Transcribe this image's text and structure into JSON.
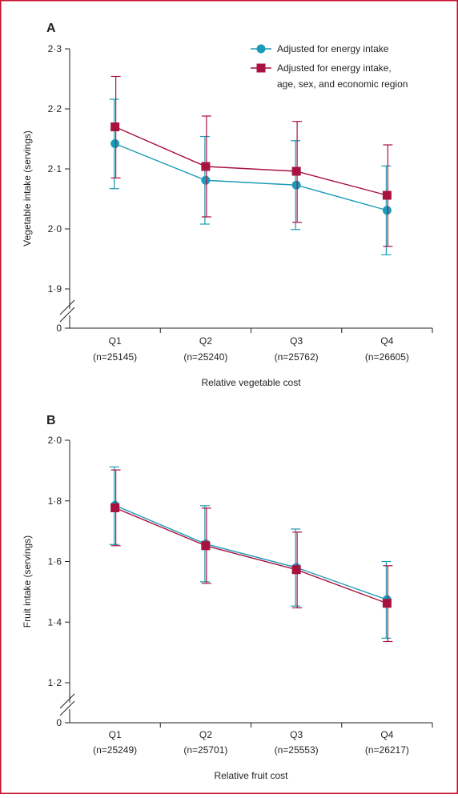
{
  "colors": {
    "frame": "#c8102e",
    "axis": "#231f20",
    "series_1": "#1a9bb8",
    "series_2": "#a8123e"
  },
  "legend": [
    {
      "lines": [
        "Adjusted for energy intake"
      ],
      "marker": "circle"
    },
    {
      "lines": [
        "Adjusted for energy intake,",
        "age, sex, and economic region"
      ],
      "marker": "square"
    }
  ],
  "chart_data": [
    {
      "panel": "A",
      "type": "line",
      "ylabel": "Vegetable intake (servings)",
      "xlabel": "Relative vegetable cost",
      "ylim": [
        1.9,
        2.3
      ],
      "yticks": [
        "2·3",
        "2·2",
        "2·1",
        "2·0",
        "1·9"
      ],
      "ybreak_tick": "0",
      "categories": [
        {
          "label": "Q1",
          "n": "(n=25145)"
        },
        {
          "label": "Q2",
          "n": "(n=25240)"
        },
        {
          "label": "Q3",
          "n": "(n=25762)"
        },
        {
          "label": "Q4",
          "n": "(n=26605)"
        }
      ],
      "series": [
        {
          "name": "Adjusted for energy intake",
          "marker": "circle",
          "values": [
            2.142,
            2.081,
            2.073,
            2.031
          ],
          "lower": [
            2.067,
            2.008,
            1.999,
            1.957
          ],
          "upper": [
            2.216,
            2.154,
            2.147,
            2.105
          ]
        },
        {
          "name": "Adjusted for energy intake, age, sex, and economic region",
          "marker": "square",
          "values": [
            2.17,
            2.104,
            2.096,
            2.056
          ],
          "lower": [
            2.085,
            2.02,
            2.011,
            1.971
          ],
          "upper": [
            2.254,
            2.188,
            2.179,
            2.14
          ]
        }
      ]
    },
    {
      "panel": "B",
      "type": "line",
      "ylabel": "Fruit intake (servings)",
      "xlabel": "Relative fruit cost",
      "ylim": [
        1.2,
        2.0
      ],
      "yticks": [
        "2·0",
        "1·8",
        "1·6",
        "1·4",
        "1·2"
      ],
      "ybreak_tick": "0",
      "categories": [
        {
          "label": "Q1",
          "n": "(n=25249)"
        },
        {
          "label": "Q2",
          "n": "(n=25701)"
        },
        {
          "label": "Q3",
          "n": "(n=25553)"
        },
        {
          "label": "Q4",
          "n": "(n=26217)"
        }
      ],
      "series": [
        {
          "name": "Adjusted for energy intake",
          "marker": "circle",
          "values": [
            1.785,
            1.658,
            1.58,
            1.474
          ],
          "lower": [
            1.656,
            1.533,
            1.453,
            1.347
          ],
          "upper": [
            1.912,
            1.784,
            1.707,
            1.6
          ]
        },
        {
          "name": "Adjusted for energy intake, age, sex, and economic region",
          "marker": "square",
          "values": [
            1.777,
            1.652,
            1.573,
            1.462
          ],
          "lower": [
            1.652,
            1.528,
            1.447,
            1.336
          ],
          "upper": [
            1.902,
            1.776,
            1.697,
            1.586
          ]
        }
      ]
    }
  ]
}
